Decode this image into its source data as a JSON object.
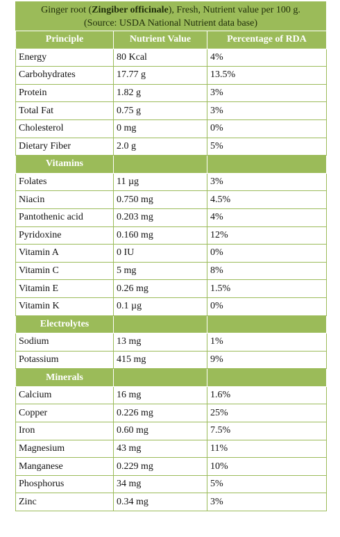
{
  "title": {
    "prefix": "Ginger root (",
    "bold": "Zingiber officinale",
    "suffix": "), Fresh, Nutrient value per 100 g.",
    "source": "(Source: USDA National Nutrient data base)"
  },
  "table": {
    "header": [
      "Principle",
      "Nutrient Value",
      "Percentage of RDA"
    ],
    "sections": [
      {
        "rows": [
          [
            "Energy",
            "80 Kcal",
            "4%"
          ],
          [
            "Carbohydrates",
            "17.77 g",
            "13.5%"
          ],
          [
            "Protein",
            "1.82 g",
            "3%"
          ],
          [
            "Total Fat",
            "0.75 g",
            "3%"
          ],
          [
            "Cholesterol",
            "0 mg",
            "0%"
          ],
          [
            "Dietary Fiber",
            "2.0 g",
            "5%"
          ]
        ]
      },
      {
        "name": "Vitamins",
        "rows": [
          [
            "Folates",
            "11 µg",
            "3%"
          ],
          [
            "Niacin",
            "0.750 mg",
            "4.5%"
          ],
          [
            "Pantothenic acid",
            "0.203 mg",
            "4%"
          ],
          [
            "Pyridoxine",
            "0.160 mg",
            "12%"
          ],
          [
            "Vitamin A",
            "0 IU",
            "0%"
          ],
          [
            "Vitamin C",
            "5 mg",
            "8%"
          ],
          [
            "Vitamin E",
            "0.26 mg",
            "1.5%"
          ],
          [
            "Vitamin K",
            "0.1 µg",
            "0%"
          ]
        ]
      },
      {
        "name": "Electrolytes",
        "rows": [
          [
            "Sodium",
            "13 mg",
            "1%"
          ],
          [
            "Potassium",
            "415 mg",
            "9%"
          ]
        ]
      },
      {
        "name": "Minerals",
        "rows": [
          [
            "Calcium",
            "16 mg",
            "1.6%"
          ],
          [
            "Copper",
            "0.226 mg",
            "25%"
          ],
          [
            "Iron",
            "0.60 mg",
            "7.5%"
          ],
          [
            "Magnesium",
            "43 mg",
            "11%"
          ],
          [
            "Manganese",
            "0.229 mg",
            "10%"
          ],
          [
            "Phosphorus",
            "34 mg",
            "5%"
          ],
          [
            "Zinc",
            "0.34 mg",
            "3%"
          ]
        ]
      }
    ]
  }
}
